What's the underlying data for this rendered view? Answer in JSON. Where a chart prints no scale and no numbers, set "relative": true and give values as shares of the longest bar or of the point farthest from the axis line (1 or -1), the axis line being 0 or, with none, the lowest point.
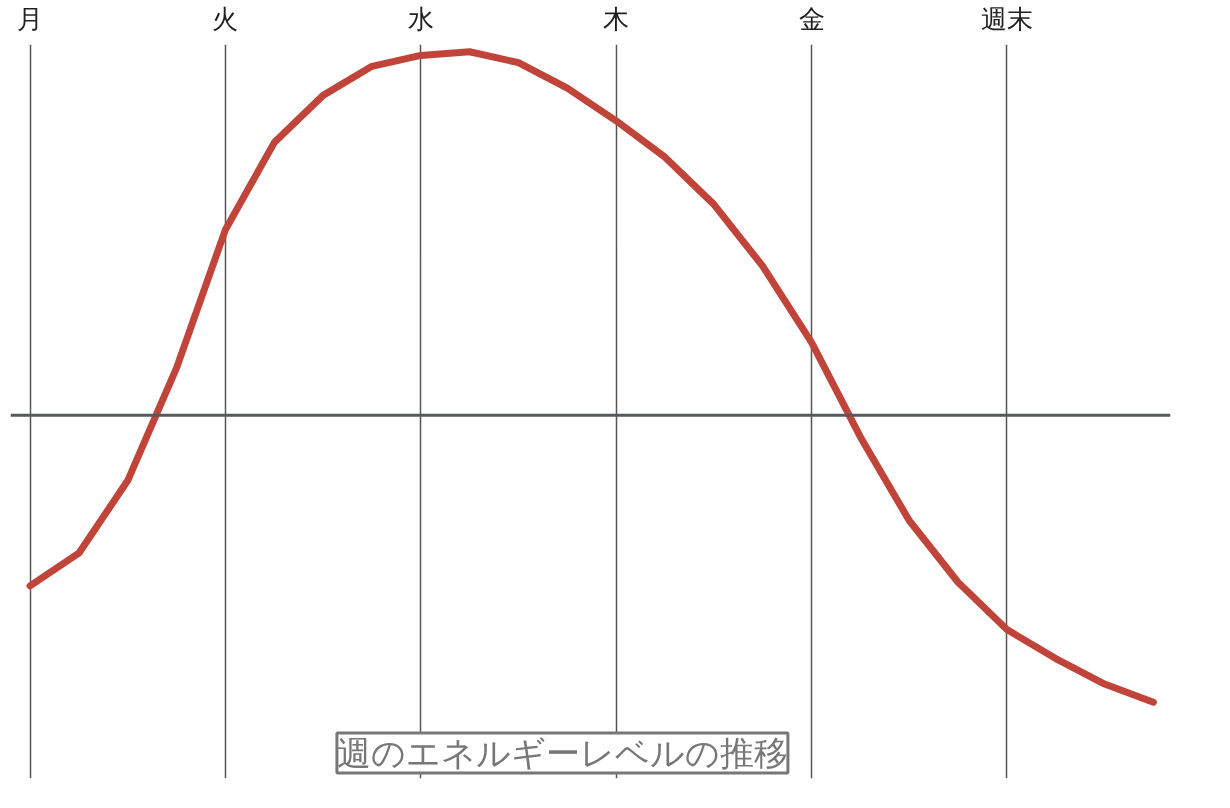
{
  "chart_data": {
    "type": "line",
    "title": "週のエネルギーレベルの推移",
    "relative": true,
    "grid": "x",
    "marker": "none",
    "line_style": "solid",
    "categories": [
      "月",
      null,
      null,
      null,
      "火",
      null,
      null,
      null,
      "水",
      null,
      null,
      null,
      "木",
      null,
      null,
      null,
      "金",
      null,
      null,
      null,
      "週末",
      null,
      null,
      null
    ],
    "series": [
      {
        "color": "#c0443a",
        "values": [
          -0.47,
          -0.38,
          -0.18,
          0.13,
          0.51,
          0.75,
          0.88,
          0.96,
          0.99,
          1.0,
          0.97,
          0.9,
          0.81,
          0.71,
          0.58,
          0.41,
          0.2,
          -0.06,
          -0.29,
          -0.46,
          -0.59,
          -0.67,
          -0.74,
          -0.79
        ]
      }
    ]
  }
}
